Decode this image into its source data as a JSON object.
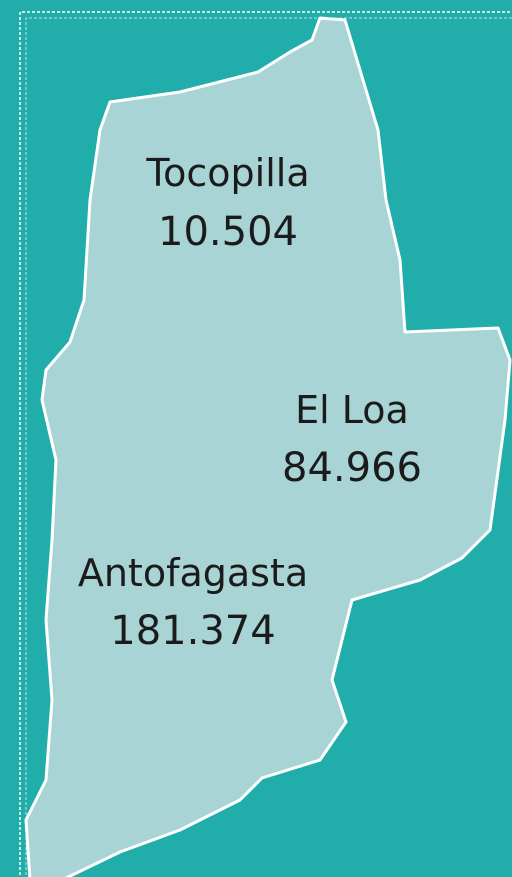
{
  "regions": [
    {
      "name": "Tocopilla",
      "value": "10.504"
    },
    {
      "name": "El Loa",
      "value": "84.966"
    },
    {
      "name": "Antofagasta",
      "value": "181.374"
    }
  ]
}
